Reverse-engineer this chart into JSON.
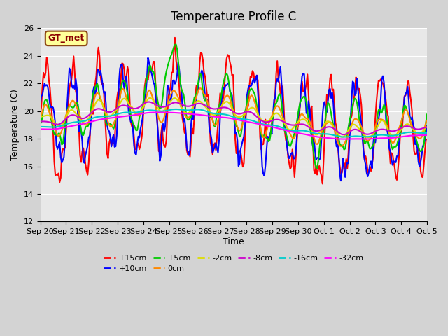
{
  "title": "Temperature Profile C",
  "xlabel": "Time",
  "ylabel": "Temperature (C)",
  "ylim": [
    12,
    26
  ],
  "yticks": [
    12,
    14,
    16,
    18,
    20,
    22,
    24,
    26
  ],
  "plot_bg_color": "#e8e8e8",
  "fig_bg_color": "#d3d3d3",
  "annotation_text": "GT_met",
  "annotation_box_color": "#ffff99",
  "annotation_box_edge": "#8b4513",
  "series": [
    {
      "label": "+15cm",
      "color": "#ff0000",
      "lw": 1.5
    },
    {
      "label": "+10cm",
      "color": "#0000ff",
      "lw": 1.5
    },
    {
      "label": "+5cm",
      "color": "#00cc00",
      "lw": 1.5
    },
    {
      "label": "0cm",
      "color": "#ff8800",
      "lw": 1.5
    },
    {
      "label": "-2cm",
      "color": "#dddd00",
      "lw": 1.5
    },
    {
      "label": "-8cm",
      "color": "#cc00cc",
      "lw": 1.5
    },
    {
      "label": "-16cm",
      "color": "#00cccc",
      "lw": 1.5
    },
    {
      "label": "-32cm",
      "color": "#ff00ff",
      "lw": 1.5
    }
  ],
  "xtick_labels": [
    "Sep 20",
    "Sep 21",
    "Sep 22",
    "Sep 23",
    "Sep 24",
    "Sep 25",
    "Sep 26",
    "Sep 27",
    "Sep 28",
    "Sep 29",
    "Sep 30",
    "Oct 1",
    "Oct 2",
    "Oct 3",
    "Oct 4",
    "Oct 5"
  ],
  "n_points": 360
}
